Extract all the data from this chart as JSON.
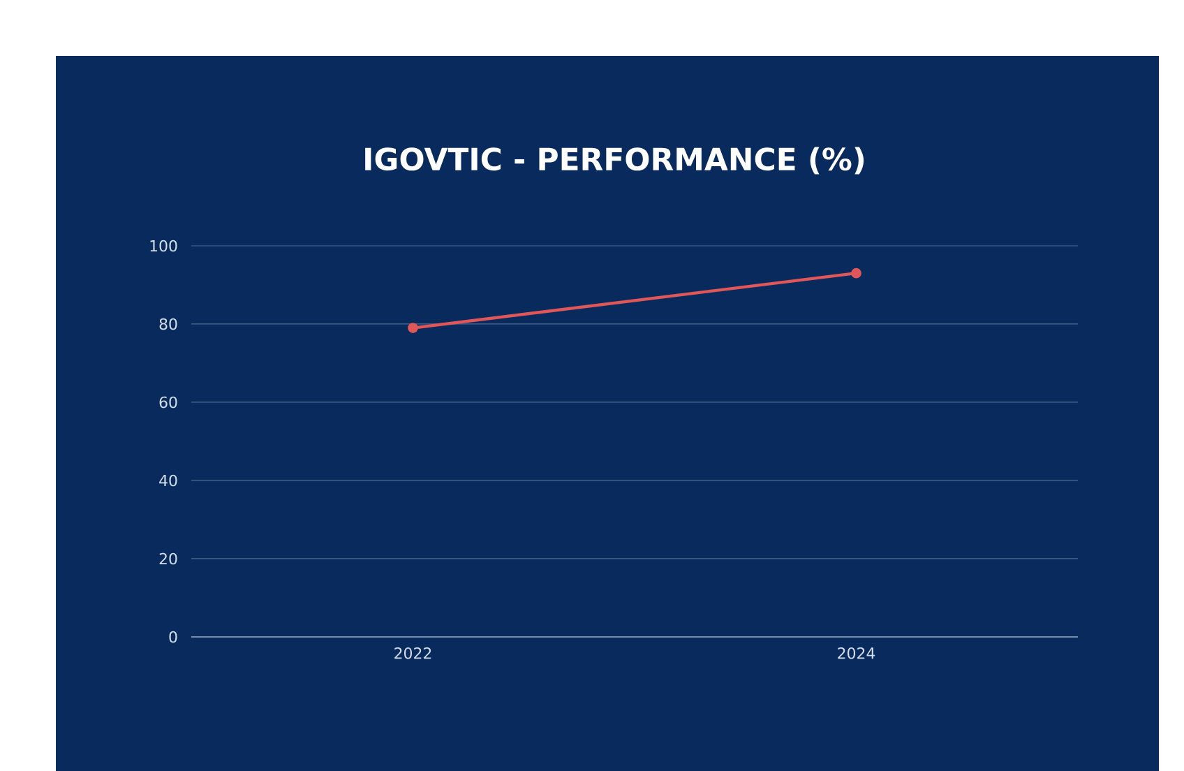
{
  "chart_data": {
    "type": "line",
    "title": "IGOVTIC - PERFORMANCE (%)",
    "categories": [
      "2022",
      "2024"
    ],
    "series": [
      {
        "color": "#e0575a",
        "values": [
          79,
          93
        ]
      }
    ],
    "ylim": [
      0,
      100
    ],
    "yticks": [
      0,
      20,
      40,
      60,
      80,
      100
    ],
    "grid": "y",
    "marker": "circle",
    "line_style": "solid",
    "legend": false
  }
}
